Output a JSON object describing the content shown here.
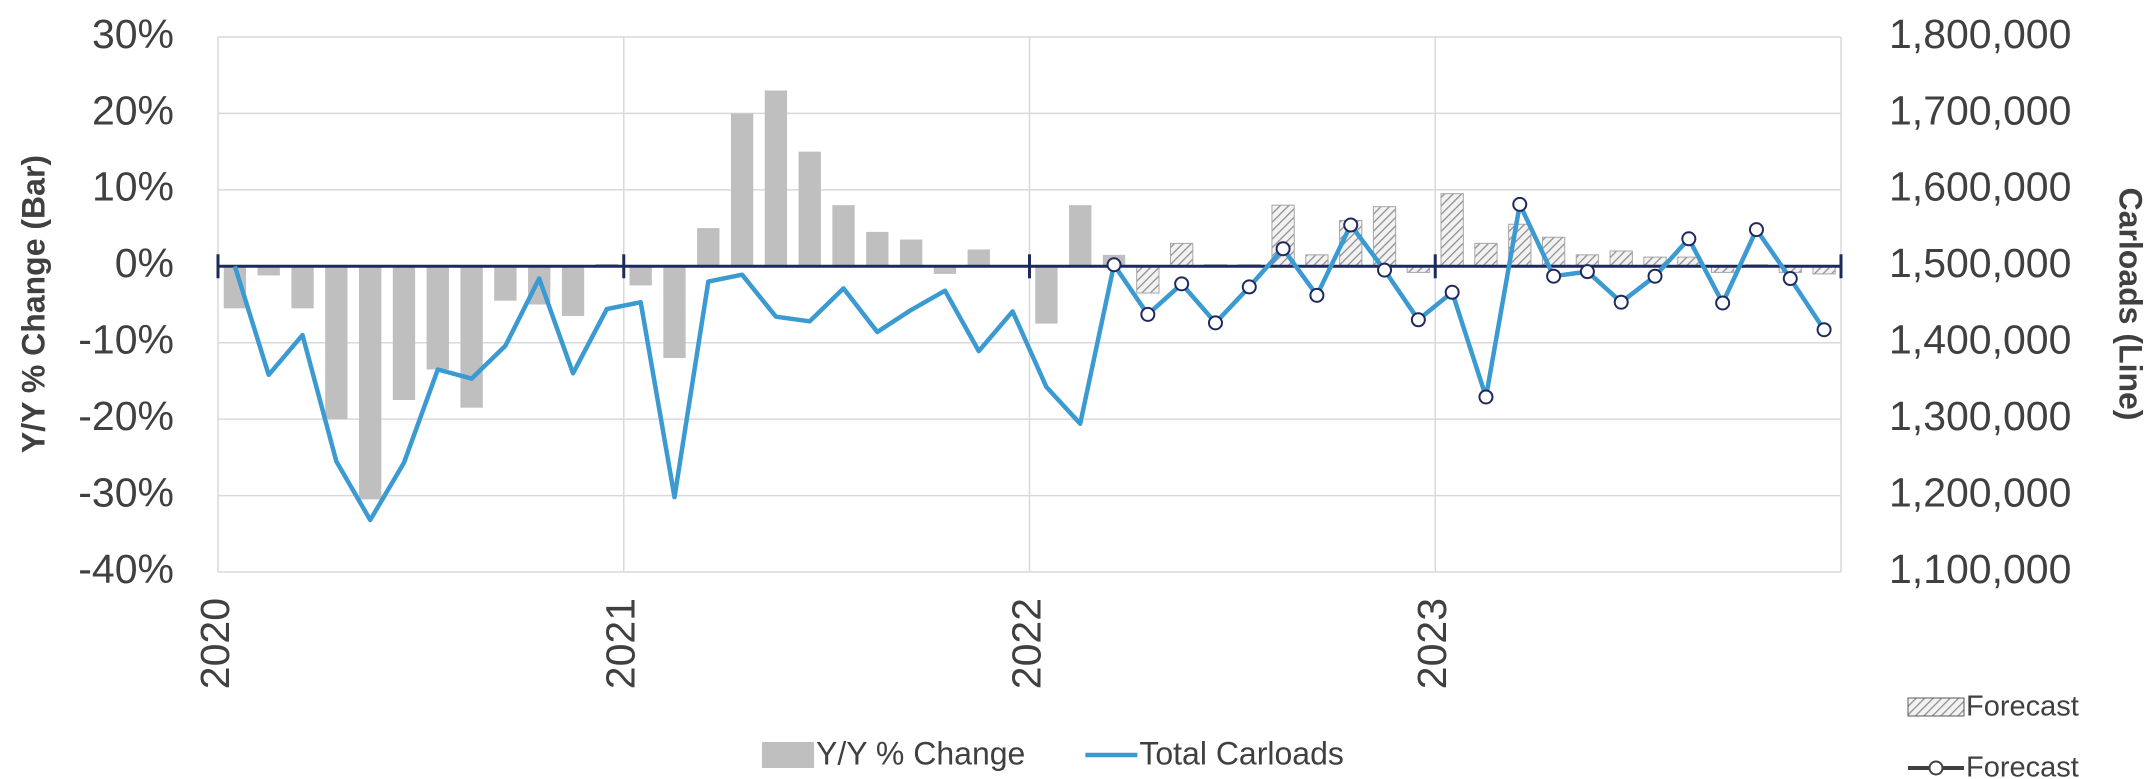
{
  "chart_data": {
    "type": "bar_line",
    "y_axis_label": "Y/Y % Change (Bar)",
    "y2_axis_label": "Carloads (Line)",
    "categories": [
      "2020",
      null,
      null,
      null,
      null,
      null,
      null,
      null,
      null,
      null,
      null,
      null,
      "2021",
      null,
      null,
      null,
      null,
      null,
      null,
      null,
      null,
      null,
      null,
      null,
      "2022",
      null,
      null,
      null,
      null,
      null,
      null,
      null,
      null,
      null,
      null,
      null,
      "2023",
      null,
      null,
      null,
      null,
      null,
      null,
      null,
      null,
      null,
      null,
      null
    ],
    "ylim": [
      -40,
      30
    ],
    "yticks": [
      {
        "value": -40,
        "label": "-40%"
      },
      {
        "value": -30,
        "label": "-30%"
      },
      {
        "value": -20,
        "label": "-20%"
      },
      {
        "value": -10,
        "label": "-10%"
      },
      {
        "value": 0,
        "label": "0%"
      },
      {
        "value": 10,
        "label": "10%"
      },
      {
        "value": 20,
        "label": "20%"
      },
      {
        "value": 30,
        "label": "30%"
      }
    ],
    "y2lim": [
      1100000,
      1800000
    ],
    "y2ticks": [
      {
        "value": 1100000,
        "label": "1,100,000"
      },
      {
        "value": 1200000,
        "label": "1,200,000"
      },
      {
        "value": 1300000,
        "label": "1,300,000"
      },
      {
        "value": 1400000,
        "label": "1,400,000"
      },
      {
        "value": 1500000,
        "label": "1,500,000"
      },
      {
        "value": 1600000,
        "label": "1,600,000"
      },
      {
        "value": 1700000,
        "label": "1,700,000"
      },
      {
        "value": 1800000,
        "label": "1,800,000"
      }
    ],
    "grid": true,
    "series": [
      {
        "name": "Y/Y % Change",
        "type": "bar",
        "color": "#bfbfbf",
        "legend": "bottom",
        "values": [
          -5.5,
          -1.2,
          -5.5,
          -20,
          -30.5,
          -17.5,
          -13.5,
          -18.5,
          -4.5,
          -5,
          -6.5,
          0.3,
          -2.5,
          -12,
          5,
          20,
          23,
          15,
          8,
          4.5,
          3.5,
          -1,
          2.2,
          0,
          -7.5,
          8,
          1.5,
          null,
          null,
          null,
          null,
          null,
          null,
          null,
          null,
          null,
          null,
          null,
          null,
          null,
          null,
          null,
          null,
          null,
          null,
          null,
          null,
          null
        ]
      },
      {
        "name": "Total Carloads",
        "type": "line",
        "axis": "y2",
        "color": "#3a9ad1",
        "legend": "bottom",
        "values": [
          1500000,
          1358000,
          1410000,
          1245000,
          1168000,
          1243000,
          1365000,
          1353000,
          1396000,
          1484000,
          1360000,
          1444000,
          1453000,
          1198000,
          1480000,
          1489000,
          1434000,
          1428000,
          1471000,
          1414000,
          1443000,
          1468000,
          1389000,
          1441000,
          1342000,
          1294000,
          1502000,
          null,
          null,
          null,
          null,
          null,
          null,
          null,
          null,
          null,
          null,
          null,
          null,
          null,
          null,
          null,
          null,
          null,
          null,
          null,
          null,
          null
        ]
      },
      {
        "name": "Forecast",
        "type": "bar",
        "hatched": true,
        "color": "#bfbfbf",
        "legend": "bottom-right",
        "values": [
          null,
          null,
          null,
          null,
          null,
          null,
          null,
          null,
          null,
          null,
          null,
          null,
          null,
          null,
          null,
          null,
          null,
          null,
          null,
          null,
          null,
          null,
          null,
          null,
          null,
          null,
          null,
          -3.5,
          3,
          0.2,
          0.2,
          8,
          1.5,
          6,
          7.8,
          -0.8,
          9.5,
          3,
          5.5,
          3.8,
          1.5,
          2,
          1.2,
          1.2,
          -0.8,
          0.2,
          -0.8,
          -1
        ]
      },
      {
        "name": "Forecast",
        "type": "line",
        "axis": "y2",
        "markers": true,
        "color": "#3a9ad1",
        "legend": "bottom-right",
        "values": [
          null,
          null,
          null,
          null,
          null,
          null,
          null,
          null,
          null,
          null,
          null,
          null,
          null,
          null,
          null,
          null,
          null,
          null,
          null,
          null,
          null,
          null,
          null,
          null,
          null,
          null,
          1502000,
          1437000,
          1477000,
          1426000,
          1473000,
          1523000,
          1462000,
          1554000,
          1495000,
          1430000,
          1466000,
          1329000,
          1581000,
          1487000,
          1493000,
          1453000,
          1487000,
          1536000,
          1452000,
          1548000,
          1484000,
          1417000
        ]
      }
    ]
  }
}
